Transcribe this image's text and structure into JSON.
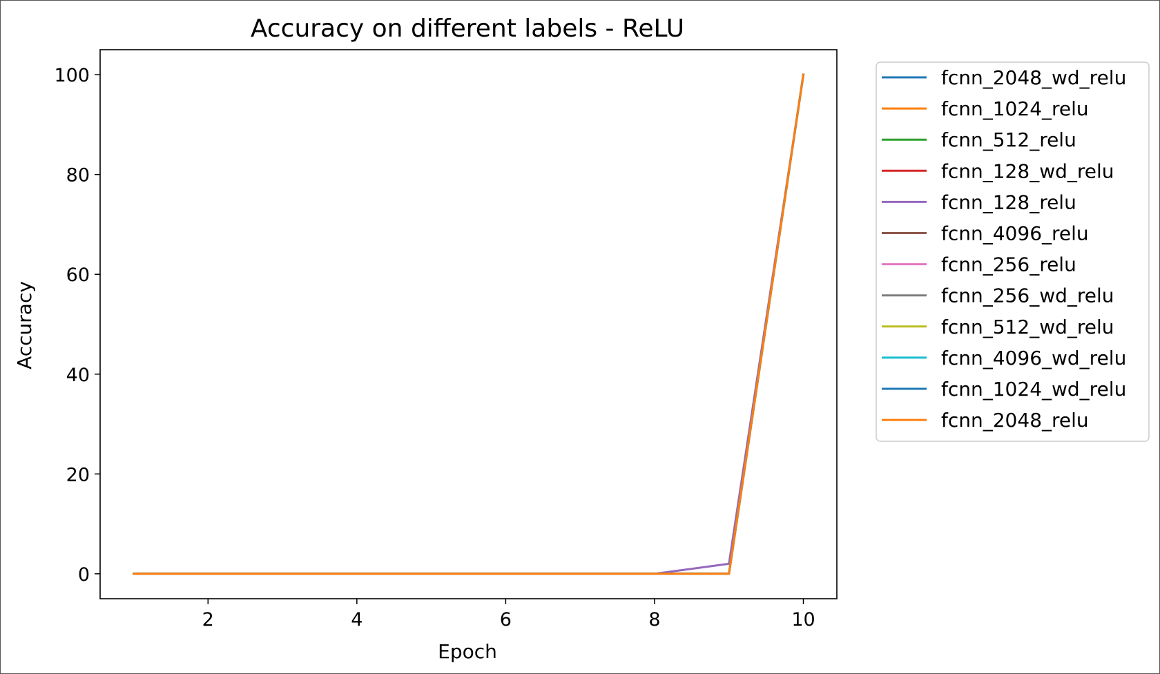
{
  "chart_data": {
    "type": "line",
    "title": "Accuracy on different labels - ReLU",
    "xlabel": "Epoch",
    "ylabel": "Accuracy",
    "xlim": [
      0.55,
      10.45
    ],
    "ylim": [
      -5.0,
      105.0
    ],
    "xticks": [
      2,
      4,
      6,
      8,
      10
    ],
    "yticks": [
      0,
      20,
      40,
      60,
      80,
      100
    ],
    "grid": false,
    "legend_position": "outside-right",
    "x": [
      1,
      2,
      3,
      4,
      5,
      6,
      7,
      8,
      9,
      10
    ],
    "series": [
      {
        "name": "fcnn_2048_wd_relu",
        "color": "#1f77b4",
        "values": [
          0,
          0,
          0,
          0,
          0,
          0,
          0,
          0,
          0,
          100
        ]
      },
      {
        "name": "fcnn_1024_relu",
        "color": "#ff7f0e",
        "values": [
          0,
          0,
          0,
          0,
          0,
          0,
          0,
          0,
          0,
          100
        ]
      },
      {
        "name": "fcnn_512_relu",
        "color": "#2ca02c",
        "values": [
          0,
          0,
          0,
          0,
          0,
          0,
          0,
          0,
          0,
          100
        ]
      },
      {
        "name": "fcnn_128_wd_relu",
        "color": "#d62728",
        "values": [
          0,
          0,
          0,
          0,
          0,
          0,
          0,
          0,
          0,
          100
        ]
      },
      {
        "name": "fcnn_128_relu",
        "color": "#9467bd",
        "values": [
          0,
          0,
          0,
          0,
          0,
          0,
          0,
          0,
          2,
          100
        ]
      },
      {
        "name": "fcnn_4096_relu",
        "color": "#8c564b",
        "values": [
          0,
          0,
          0,
          0,
          0,
          0,
          0,
          0,
          0,
          100
        ]
      },
      {
        "name": "fcnn_256_relu",
        "color": "#e377c2",
        "values": [
          0,
          0,
          0,
          0,
          0,
          0,
          0,
          0,
          0,
          100
        ]
      },
      {
        "name": "fcnn_256_wd_relu",
        "color": "#7f7f7f",
        "values": [
          0,
          0,
          0,
          0,
          0,
          0,
          0,
          0,
          0,
          100
        ]
      },
      {
        "name": "fcnn_512_wd_relu",
        "color": "#bcbd22",
        "values": [
          0,
          0,
          0,
          0,
          0,
          0,
          0,
          0,
          0,
          100
        ]
      },
      {
        "name": "fcnn_4096_wd_relu",
        "color": "#17becf",
        "values": [
          0,
          0,
          0,
          0,
          0,
          0,
          0,
          0,
          0,
          100
        ]
      },
      {
        "name": "fcnn_1024_wd_relu",
        "color": "#1f77b4",
        "values": [
          0,
          0,
          0,
          0,
          0,
          0,
          0,
          0,
          0,
          100
        ]
      },
      {
        "name": "fcnn_2048_relu",
        "color": "#ff7f0e",
        "values": [
          0,
          0,
          0,
          0,
          0,
          0,
          0,
          0,
          0,
          100
        ]
      }
    ]
  }
}
